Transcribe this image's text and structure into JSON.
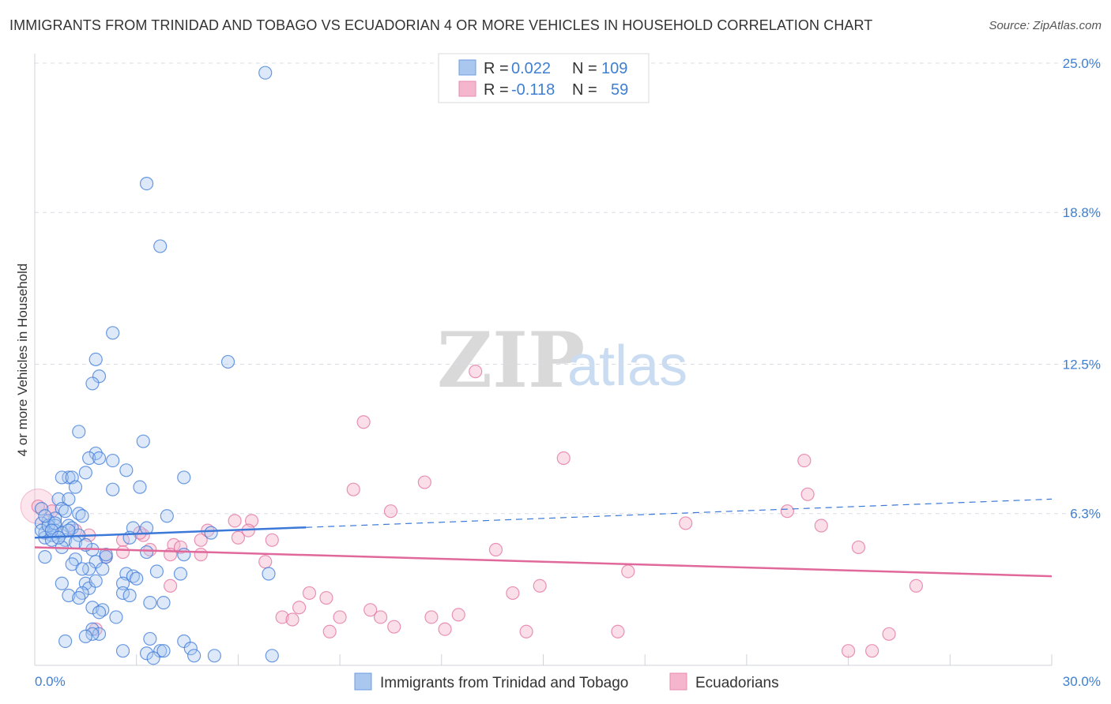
{
  "title": "IMMIGRANTS FROM TRINIDAD AND TOBAGO VS ECUADORIAN 4 OR MORE VEHICLES IN HOUSEHOLD CORRELATION CHART",
  "source": "Source: ZipAtlas.com",
  "watermark": {
    "zip": "ZIP",
    "atlas": "atlas"
  },
  "legend": {
    "rows": [
      {
        "r_label": "R =",
        "r_value": "0.022",
        "n_label": "N =",
        "n_value": "109"
      },
      {
        "r_label": "R =",
        "r_value": "-0.118",
        "n_label": "N =",
        "n_value": "59"
      }
    ]
  },
  "bottom_legend": [
    "Immigrants from Trinidad and Tobago",
    "Ecuadorians"
  ],
  "colors": {
    "blue": "#3b78d8",
    "blue_fill": "#a9c7ef",
    "pink": "#e0689a",
    "pink_fill": "#f5b5cc",
    "axis_text": "#3f7fd1",
    "grid": "#d9dde3"
  },
  "chart_data": {
    "type": "scatter",
    "title": "IMMIGRANTS FROM TRINIDAD AND TOBAGO VS ECUADORIAN 4 OR MORE VEHICLES IN HOUSEHOLD CORRELATION CHART",
    "ylabel": "4 or more Vehicles in Household",
    "xlabel": "",
    "xlim": [
      0,
      30
    ],
    "ylim": [
      0,
      25
    ],
    "x_tick_labels": [
      "0.0%",
      "30.0%"
    ],
    "y_ticks": [
      6.3,
      12.5,
      18.8,
      25.0
    ],
    "y_tick_labels": [
      "6.3%",
      "12.5%",
      "18.8%",
      "25.0%"
    ],
    "grid": true,
    "series": [
      {
        "name": "Immigrants from Trinidad and Tobago",
        "color": "#3b78d8",
        "R": 0.022,
        "N": 109,
        "trend": {
          "x0": 0,
          "y0": 5.3,
          "x1": 30,
          "y1": 6.9,
          "solid_until": 8
        },
        "points": [
          [
            6.8,
            24.6
          ],
          [
            3.3,
            20.0
          ],
          [
            3.7,
            17.4
          ],
          [
            2.3,
            13.8
          ],
          [
            5.7,
            12.6
          ],
          [
            1.8,
            12.7
          ],
          [
            1.9,
            12.0
          ],
          [
            1.7,
            11.7
          ],
          [
            1.3,
            9.7
          ],
          [
            3.2,
            9.3
          ],
          [
            1.8,
            8.8
          ],
          [
            1.6,
            8.6
          ],
          [
            2.3,
            8.5
          ],
          [
            1.9,
            8.6
          ],
          [
            2.7,
            8.1
          ],
          [
            1.5,
            8.0
          ],
          [
            1.0,
            7.8
          ],
          [
            0.8,
            7.8
          ],
          [
            1.1,
            7.8
          ],
          [
            4.4,
            7.8
          ],
          [
            3.1,
            7.4
          ],
          [
            2.3,
            7.3
          ],
          [
            1.2,
            7.4
          ],
          [
            0.7,
            6.9
          ],
          [
            1.0,
            6.9
          ],
          [
            0.2,
            6.5
          ],
          [
            0.8,
            6.5
          ],
          [
            0.9,
            6.4
          ],
          [
            1.3,
            6.3
          ],
          [
            1.4,
            6.2
          ],
          [
            0.6,
            6.1
          ],
          [
            3.9,
            6.2
          ],
          [
            0.4,
            6.0
          ],
          [
            0.6,
            5.8
          ],
          [
            0.2,
            5.9
          ],
          [
            1.0,
            5.8
          ],
          [
            1.1,
            5.7
          ],
          [
            0.6,
            5.6
          ],
          [
            2.9,
            5.7
          ],
          [
            3.3,
            5.7
          ],
          [
            0.3,
            5.5
          ],
          [
            0.5,
            5.4
          ],
          [
            0.8,
            5.5
          ],
          [
            1.3,
            5.4
          ],
          [
            0.3,
            5.3
          ],
          [
            0.5,
            5.2
          ],
          [
            0.9,
            5.2
          ],
          [
            1.2,
            5.1
          ],
          [
            2.8,
            5.3
          ],
          [
            5.2,
            5.5
          ],
          [
            0.8,
            4.9
          ],
          [
            1.7,
            4.8
          ],
          [
            3.3,
            4.7
          ],
          [
            4.4,
            4.6
          ],
          [
            0.3,
            4.5
          ],
          [
            1.2,
            4.4
          ],
          [
            2.1,
            4.5
          ],
          [
            1.8,
            4.3
          ],
          [
            1.1,
            4.2
          ],
          [
            1.6,
            4.0
          ],
          [
            2.0,
            4.0
          ],
          [
            3.6,
            3.9
          ],
          [
            4.3,
            3.8
          ],
          [
            2.7,
            3.8
          ],
          [
            2.9,
            3.7
          ],
          [
            6.9,
            3.8
          ],
          [
            3.0,
            3.6
          ],
          [
            0.8,
            3.4
          ],
          [
            1.5,
            3.4
          ],
          [
            2.6,
            3.4
          ],
          [
            1.6,
            3.2
          ],
          [
            1.4,
            3.0
          ],
          [
            2.6,
            3.0
          ],
          [
            2.8,
            2.9
          ],
          [
            1.0,
            2.9
          ],
          [
            1.3,
            2.8
          ],
          [
            3.4,
            2.6
          ],
          [
            3.8,
            2.6
          ],
          [
            1.7,
            2.4
          ],
          [
            2.0,
            2.3
          ],
          [
            1.9,
            2.2
          ],
          [
            2.4,
            2.0
          ],
          [
            1.7,
            1.5
          ],
          [
            1.9,
            1.3
          ],
          [
            3.4,
            1.1
          ],
          [
            4.4,
            1.0
          ],
          [
            0.9,
            1.0
          ],
          [
            4.6,
            0.7
          ],
          [
            2.6,
            0.6
          ],
          [
            3.7,
            0.6
          ],
          [
            3.8,
            0.6
          ],
          [
            3.3,
            0.5
          ],
          [
            4.7,
            0.4
          ],
          [
            5.3,
            0.4
          ],
          [
            7.0,
            0.4
          ],
          [
            3.5,
            0.3
          ],
          [
            1.7,
            1.3
          ],
          [
            1.5,
            1.2
          ],
          [
            0.2,
            5.6
          ],
          [
            0.4,
            5.8
          ],
          [
            0.6,
            5.9
          ],
          [
            0.5,
            5.6
          ],
          [
            1.0,
            5.6
          ],
          [
            2.1,
            4.6
          ],
          [
            1.4,
            4.0
          ],
          [
            0.3,
            6.2
          ],
          [
            0.7,
            5.3
          ],
          [
            1.8,
            3.5
          ],
          [
            1.5,
            5.0
          ]
        ]
      },
      {
        "name": "Ecuadorians",
        "color": "#e0689a",
        "R": -0.118,
        "N": 59,
        "trend": {
          "x0": 0,
          "y0": 4.9,
          "x1": 30,
          "y1": 3.7
        },
        "points": [
          [
            0.1,
            6.6
          ],
          [
            0.5,
            6.4
          ],
          [
            1.2,
            5.6
          ],
          [
            2.6,
            5.2
          ],
          [
            3.2,
            5.4
          ],
          [
            4.1,
            5.0
          ],
          [
            4.3,
            4.9
          ],
          [
            4.9,
            5.2
          ],
          [
            5.1,
            5.6
          ],
          [
            5.9,
            6.0
          ],
          [
            6.4,
            6.0
          ],
          [
            6.3,
            5.6
          ],
          [
            6.0,
            5.3
          ],
          [
            7.0,
            5.2
          ],
          [
            3.4,
            4.8
          ],
          [
            2.6,
            4.7
          ],
          [
            2.1,
            4.5
          ],
          [
            4.0,
            4.6
          ],
          [
            6.8,
            4.3
          ],
          [
            4.0,
            3.3
          ],
          [
            8.1,
            3.0
          ],
          [
            8.6,
            2.8
          ],
          [
            7.8,
            2.4
          ],
          [
            7.3,
            2.0
          ],
          [
            7.6,
            1.9
          ],
          [
            9.0,
            2.0
          ],
          [
            9.9,
            2.3
          ],
          [
            10.2,
            2.0
          ],
          [
            10.6,
            1.6
          ],
          [
            8.7,
            1.4
          ],
          [
            11.7,
            2.0
          ],
          [
            12.1,
            1.5
          ],
          [
            12.5,
            2.1
          ],
          [
            13.0,
            12.2
          ],
          [
            9.4,
            7.3
          ],
          [
            9.7,
            10.1
          ],
          [
            10.5,
            6.4
          ],
          [
            11.5,
            7.6
          ],
          [
            13.6,
            4.8
          ],
          [
            14.1,
            3.0
          ],
          [
            14.5,
            1.4
          ],
          [
            14.9,
            3.3
          ],
          [
            15.6,
            8.6
          ],
          [
            17.2,
            1.4
          ],
          [
            17.5,
            3.9
          ],
          [
            19.2,
            5.9
          ],
          [
            22.2,
            6.4
          ],
          [
            22.7,
            8.5
          ],
          [
            22.8,
            7.1
          ],
          [
            23.2,
            5.8
          ],
          [
            24.3,
            4.9
          ],
          [
            24.0,
            0.6
          ],
          [
            24.7,
            0.6
          ],
          [
            25.2,
            1.3
          ],
          [
            26.0,
            3.3
          ],
          [
            1.8,
            1.5
          ],
          [
            1.6,
            5.4
          ],
          [
            3.1,
            5.5
          ],
          [
            4.9,
            4.6
          ]
        ]
      }
    ]
  }
}
